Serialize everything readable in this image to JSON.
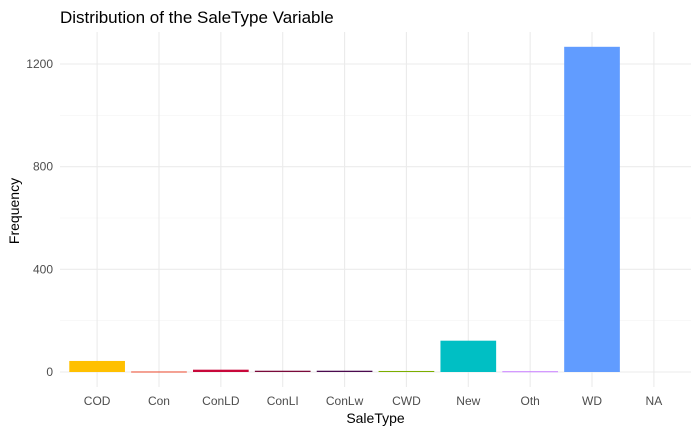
{
  "chart_data": {
    "type": "bar",
    "title": "Distribution of the SaleType Variable",
    "xlabel": "SaleType",
    "ylabel": "Frequency",
    "categories": [
      "COD",
      "Con",
      "ConLD",
      "ConLI",
      "ConLw",
      "CWD",
      "New",
      "Oth",
      "WD",
      "NA"
    ],
    "values": [
      43,
      2,
      9,
      5,
      5,
      4,
      122,
      3,
      1267,
      0
    ],
    "colors": [
      "#FFC000",
      "#E8462A",
      "#C8083A",
      "#7A0A3A",
      "#4B0A4E",
      "#7CAE00",
      "#00BFC4",
      "#C77CFF",
      "#619CFF",
      "#F8766D"
    ],
    "ylim": [
      0,
      1320
    ],
    "yticks": [
      0,
      400,
      800,
      1200
    ],
    "grid": true,
    "legend": "none"
  }
}
